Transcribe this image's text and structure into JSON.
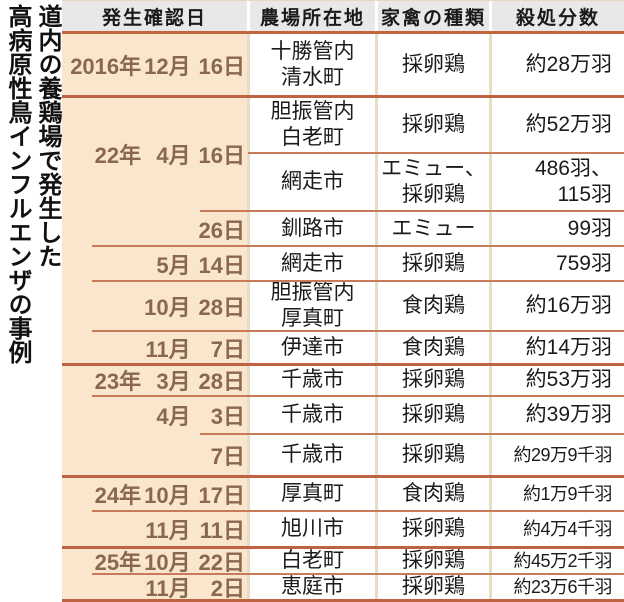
{
  "colors": {
    "header_bg": "#eae8e6",
    "date_col_bg": "#f9e6cc",
    "column_gap_stripe": "#e8dcc6",
    "thin_rule": "#c87a59",
    "thick_rule": "#bf6241",
    "date_text": "#8a6850",
    "body_text": "#1b1b1b"
  },
  "chart_data": {
    "type": "table",
    "title": "道内の養鶏場で発生した高病原性鳥インフルエンザの事例",
    "title_lines": [
      "道内の養鶏場で発生した",
      "高病原性鳥インフルエンザの事例"
    ],
    "columns": [
      "発生確認日",
      "農場所在地",
      "家禽の種類",
      "殺処分数"
    ],
    "rows": [
      {
        "date": {
          "year": "2016年",
          "month": "12月",
          "day": "16日"
        },
        "date_span": 1,
        "location": [
          "十勝管内",
          "清水町"
        ],
        "poultry": [
          "採卵鶏"
        ],
        "culled": [
          "約28万羽"
        ],
        "sep": "none"
      },
      {
        "date": {
          "year": "22年",
          "month": "4月",
          "day": "16日"
        },
        "date_span": 2,
        "location": [
          "胆振管内",
          "白老町"
        ],
        "poultry": [
          "採卵鶏"
        ],
        "culled": [
          "約52万羽"
        ],
        "sep": "thick"
      },
      {
        "date": null,
        "date_span": 0,
        "location": [
          "網走市"
        ],
        "poultry": [
          "エミュー、",
          "採卵鶏"
        ],
        "culled": [
          "486羽、",
          "115羽"
        ],
        "sep": "cols"
      },
      {
        "date": {
          "year": "",
          "month": "",
          "day": "26日"
        },
        "date_span": 1,
        "location": [
          "釧路市"
        ],
        "poultry": [
          "エミュー"
        ],
        "culled": [
          "99羽"
        ],
        "sep": "day"
      },
      {
        "date": {
          "year": "",
          "month": "5月",
          "day": "14日"
        },
        "date_span": 1,
        "location": [
          "網走市"
        ],
        "poultry": [
          "採卵鶏"
        ],
        "culled": [
          "759羽"
        ],
        "sep": "month"
      },
      {
        "date": {
          "year": "",
          "month": "10月",
          "day": "28日"
        },
        "date_span": 1,
        "location": [
          "胆振管内",
          "厚真町"
        ],
        "poultry": [
          "食肉鶏"
        ],
        "culled": [
          "約16万羽"
        ],
        "sep": "month"
      },
      {
        "date": {
          "year": "",
          "month": "11月",
          "day": "7日"
        },
        "date_span": 1,
        "location": [
          "伊達市"
        ],
        "poultry": [
          "食肉鶏"
        ],
        "culled": [
          "約14万羽"
        ],
        "sep": "month"
      },
      {
        "date": {
          "year": "23年",
          "month": "3月",
          "day": "28日"
        },
        "date_span": 1,
        "location": [
          "千歳市"
        ],
        "poultry": [
          "採卵鶏"
        ],
        "culled": [
          "約53万羽"
        ],
        "sep": "thick"
      },
      {
        "date": {
          "year": "",
          "month": "4月",
          "day": "3日"
        },
        "date_span": 1,
        "location": [
          "千歳市"
        ],
        "poultry": [
          "採卵鶏"
        ],
        "culled": [
          "約39万羽"
        ],
        "sep": "month"
      },
      {
        "date": {
          "year": "",
          "month": "",
          "day": "7日"
        },
        "date_span": 1,
        "location": [
          "千歳市"
        ],
        "poultry": [
          "採卵鶏"
        ],
        "culled": [
          "約29万9千羽"
        ],
        "sep": "day"
      },
      {
        "date": {
          "year": "24年",
          "month": "10月",
          "day": "17日"
        },
        "date_span": 1,
        "location": [
          "厚真町"
        ],
        "poultry": [
          "食肉鶏"
        ],
        "culled": [
          "約1万9千羽"
        ],
        "sep": "thick"
      },
      {
        "date": {
          "year": "",
          "month": "11月",
          "day": "11日"
        },
        "date_span": 1,
        "location": [
          "旭川市"
        ],
        "poultry": [
          "採卵鶏"
        ],
        "culled": [
          "約4万4千羽"
        ],
        "sep": "month"
      },
      {
        "date": {
          "year": "25年",
          "month": "10月",
          "day": "22日"
        },
        "date_span": 1,
        "location": [
          "白老町"
        ],
        "poultry": [
          "採卵鶏"
        ],
        "culled": [
          "約45万2千羽"
        ],
        "sep": "thick"
      },
      {
        "date": {
          "year": "",
          "month": "11月",
          "day": "2日"
        },
        "date_span": 1,
        "location": [
          "恵庭市"
        ],
        "poultry": [
          "採卵鶏"
        ],
        "culled": [
          "約23万6千羽"
        ],
        "sep": "month"
      }
    ]
  }
}
